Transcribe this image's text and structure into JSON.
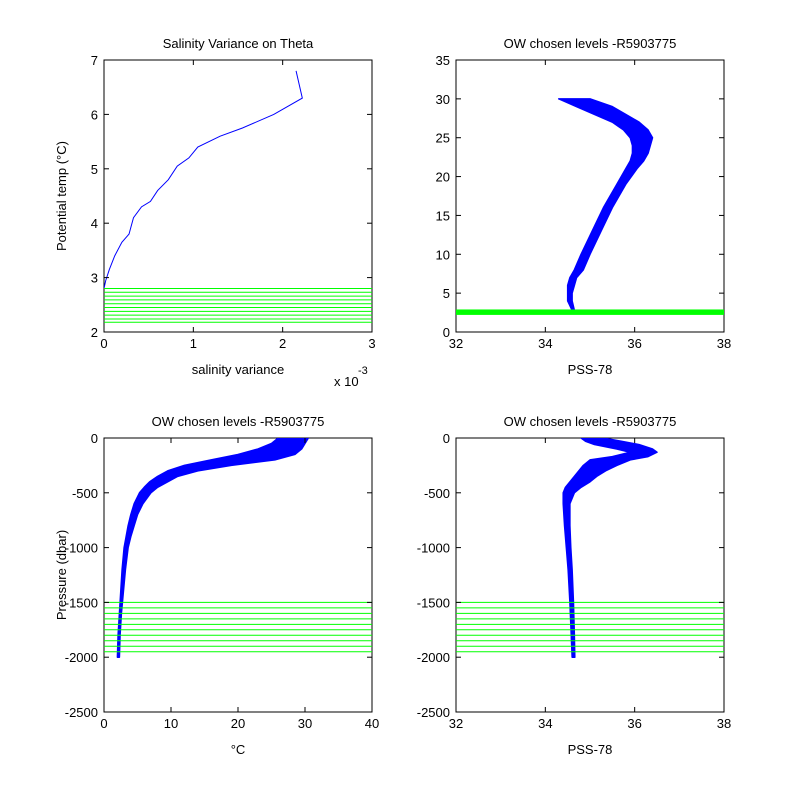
{
  "colors": {
    "profile": "#0000ff",
    "levels": "#00ff00",
    "axes": "#000000",
    "background": "#ffffff"
  },
  "chart_data": [
    {
      "type": "line",
      "title": "Salinity Variance on Theta",
      "xlabel": "salinity variance",
      "ylabel": "Potential temp (°C)",
      "xlabel_multiplier": "x 10",
      "xlabel_exponent": "-3",
      "xlim": [
        0,
        3
      ],
      "ylim": [
        2,
        7
      ],
      "xticks": [
        0,
        1,
        2,
        3
      ],
      "yticks": [
        2,
        3,
        4,
        5,
        6,
        7
      ],
      "xtick_labels": [
        "0",
        "1",
        "2",
        "3"
      ],
      "ytick_labels": [
        "2",
        "3",
        "4",
        "5",
        "6",
        "7"
      ],
      "series": [
        {
          "style": "line",
          "color": "#0000ff",
          "x": [
            2.15,
            2.22,
            1.9,
            1.55,
            1.3,
            1.05,
            0.95,
            0.82,
            0.72,
            0.6,
            0.52,
            0.42,
            0.33,
            0.28,
            0.2,
            0.12,
            0.06,
            0.02,
            0.0
          ],
          "y": [
            6.8,
            6.3,
            6.0,
            5.75,
            5.6,
            5.4,
            5.2,
            5.05,
            4.8,
            4.6,
            4.4,
            4.3,
            4.1,
            3.8,
            3.65,
            3.4,
            3.15,
            2.95,
            2.8
          ]
        },
        {
          "style": "hlines",
          "color": "#00ff00",
          "y": [
            2.8,
            2.73,
            2.66,
            2.59,
            2.52,
            2.45,
            2.38,
            2.31,
            2.24,
            2.18
          ],
          "x_extent": [
            0,
            3
          ]
        }
      ],
      "grid": false
    },
    {
      "type": "line",
      "title": "OW chosen levels -R5903775",
      "xlabel": "PSS-78",
      "ylabel": "",
      "xlim": [
        32,
        38
      ],
      "ylim": [
        0,
        35
      ],
      "xticks": [
        32,
        34,
        36,
        38
      ],
      "yticks": [
        0,
        5,
        10,
        15,
        20,
        25,
        30,
        35
      ],
      "xtick_labels": [
        "32",
        "34",
        "36",
        "38"
      ],
      "ytick_labels": [
        "0",
        "5",
        "10",
        "15",
        "20",
        "25",
        "30",
        "35"
      ],
      "series": [
        {
          "style": "band",
          "color": "#0000ff",
          "y": [
            2.8,
            4,
            5,
            6,
            7,
            8,
            10,
            13,
            16,
            19,
            21,
            22,
            23,
            24,
            25,
            26,
            27,
            28,
            29,
            30
          ],
          "xmin": [
            34.6,
            34.5,
            34.5,
            34.5,
            34.55,
            34.65,
            34.8,
            35.05,
            35.3,
            35.6,
            35.8,
            35.9,
            35.95,
            35.95,
            35.9,
            35.75,
            35.5,
            35.1,
            34.7,
            34.3
          ],
          "xmax": [
            34.65,
            34.6,
            34.6,
            34.65,
            34.7,
            34.85,
            35.0,
            35.25,
            35.5,
            35.8,
            36.05,
            36.2,
            36.3,
            36.35,
            36.4,
            36.3,
            36.1,
            35.8,
            35.5,
            35.0
          ]
        },
        {
          "style": "hband",
          "color": "#00ff00",
          "y": [
            2.2,
            2.9
          ],
          "x_extent": [
            32,
            38
          ]
        }
      ],
      "grid": false
    },
    {
      "type": "line",
      "title": "OW chosen levels -R5903775",
      "xlabel": "°C",
      "ylabel": "Pressure (dbar)",
      "xlim": [
        0,
        40
      ],
      "ylim": [
        -2500,
        0
      ],
      "xticks": [
        0,
        10,
        20,
        30,
        40
      ],
      "yticks": [
        -2500,
        -2000,
        -1500,
        -1000,
        -500,
        0
      ],
      "xtick_labels": [
        "0",
        "10",
        "20",
        "30",
        "40"
      ],
      "ytick_labels": [
        "-2500",
        "-2000",
        "-1500",
        "-1000",
        "-500",
        "0"
      ],
      "series": [
        {
          "style": "band",
          "color": "#0000ff",
          "y": [
            0,
            -50,
            -100,
            -150,
            -200,
            -250,
            -300,
            -350,
            -400,
            -450,
            -500,
            -600,
            -700,
            -800,
            -900,
            -1000,
            -1200,
            -1400,
            -1600,
            -1800,
            -2000
          ],
          "xmin": [
            26,
            25,
            23,
            20,
            16,
            12,
            9.5,
            8,
            6.8,
            6,
            5.3,
            4.5,
            4.0,
            3.6,
            3.3,
            3.0,
            2.7,
            2.5,
            2.3,
            2.1,
            2.0
          ],
          "xmax": [
            30.5,
            30,
            29.5,
            28.5,
            25.5,
            19,
            14,
            11,
            9.5,
            8,
            7,
            5.8,
            5.0,
            4.5,
            4.0,
            3.6,
            3.2,
            2.9,
            2.6,
            2.4,
            2.3
          ]
        },
        {
          "style": "hlines",
          "color": "#00ff00",
          "y": [
            -1500,
            -1550,
            -1600,
            -1650,
            -1700,
            -1750,
            -1800,
            -1850,
            -1900,
            -1950
          ],
          "x_extent": [
            0,
            40
          ]
        }
      ],
      "grid": false
    },
    {
      "type": "line",
      "title": "OW chosen levels -R5903775",
      "xlabel": "PSS-78",
      "ylabel": "",
      "xlim": [
        32,
        38
      ],
      "ylim": [
        -2500,
        0
      ],
      "xticks": [
        32,
        34,
        36,
        38
      ],
      "yticks": [
        -2500,
        -2000,
        -1500,
        -1000,
        -500,
        0
      ],
      "xtick_labels": [
        "32",
        "34",
        "36",
        "38"
      ],
      "ytick_labels": [
        "-2500",
        "-2000",
        "-1500",
        "-1000",
        "-500",
        "0"
      ],
      "series": [
        {
          "style": "band",
          "color": "#0000ff",
          "y": [
            0,
            -30,
            -60,
            -100,
            -130,
            -170,
            -200,
            -250,
            -300,
            -350,
            -400,
            -450,
            -500,
            -600,
            -800,
            -1000,
            -1200,
            -1500,
            -1800,
            -2000
          ],
          "xmin": [
            34.8,
            34.9,
            35.1,
            35.6,
            35.9,
            35.5,
            35.0,
            34.85,
            34.75,
            34.65,
            34.55,
            34.45,
            34.4,
            34.4,
            34.43,
            34.47,
            34.51,
            34.55,
            34.58,
            34.6
          ],
          "xmax": [
            35.3,
            35.7,
            36.1,
            36.4,
            36.5,
            36.3,
            35.9,
            35.6,
            35.35,
            35.15,
            35.0,
            34.8,
            34.65,
            34.55,
            34.55,
            34.57,
            34.6,
            34.63,
            34.65,
            34.66
          ]
        },
        {
          "style": "hlines",
          "color": "#00ff00",
          "y": [
            -1500,
            -1550,
            -1600,
            -1650,
            -1700,
            -1750,
            -1800,
            -1850,
            -1900,
            -1950
          ],
          "x_extent": [
            32,
            38
          ]
        }
      ],
      "grid": false
    }
  ]
}
